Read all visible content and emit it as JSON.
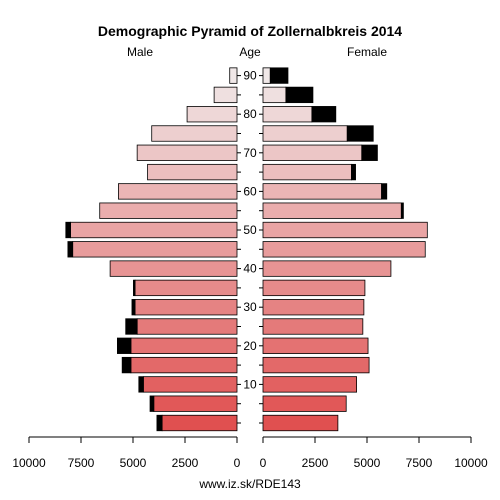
{
  "chart_data": {
    "type": "bar",
    "title": "Demographic Pyramid of Zollernalbkreis 2014",
    "left_label": "Male",
    "center_label": "Age",
    "right_label": "Female",
    "footer": "www.iz.sk/RDE143",
    "xlim": [
      0,
      10000
    ],
    "x_ticks": [
      0,
      2500,
      5000,
      7500,
      10000
    ],
    "x_tick_labels_left": [
      "0",
      "2500",
      "5000",
      "7500",
      "10000"
    ],
    "x_tick_labels_right": [
      "0",
      "2500",
      "5000",
      "7500",
      "10000"
    ],
    "age_ticks": [
      10,
      20,
      30,
      40,
      50,
      60,
      70,
      80,
      90
    ],
    "age_groups": [
      "0-4",
      "5-9",
      "10-14",
      "15-19",
      "20-24",
      "25-29",
      "30-34",
      "35-39",
      "40-44",
      "45-49",
      "50-54",
      "55-59",
      "60-64",
      "65-69",
      "70-74",
      "75-79",
      "80-84",
      "85-89",
      "90+"
    ],
    "series": [
      {
        "name": "Male",
        "base": [
          3600,
          4000,
          4500,
          5100,
          5100,
          4800,
          4900,
          4900,
          6100,
          7900,
          8000,
          6600,
          5700,
          4300,
          4800,
          4100,
          2400,
          1100,
          350
        ],
        "excess": [
          250,
          180,
          220,
          420,
          650,
          550,
          150,
          80,
          0,
          230,
          230,
          0,
          0,
          0,
          0,
          0,
          0,
          0,
          0
        ]
      },
      {
        "name": "Female",
        "base": [
          3600,
          4000,
          4500,
          5100,
          5050,
          4800,
          4850,
          4900,
          6150,
          7800,
          7900,
          6650,
          5700,
          4250,
          4750,
          4050,
          2350,
          1100,
          350
        ],
        "excess": [
          0,
          0,
          0,
          0,
          0,
          0,
          0,
          0,
          0,
          0,
          0,
          100,
          250,
          200,
          750,
          1250,
          1150,
          1300,
          850
        ]
      }
    ],
    "colors": {
      "young": "#e05050",
      "old": "#f0e8e8",
      "excess": "#000000",
      "axis": "#000000"
    }
  }
}
